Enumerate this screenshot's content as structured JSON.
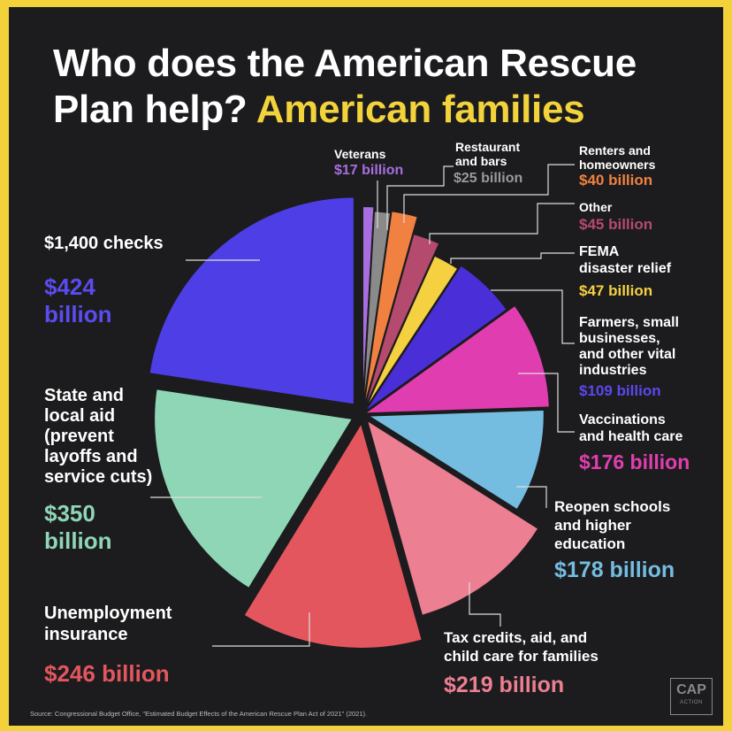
{
  "title": {
    "line1": "Who does the American Rescue",
    "line2": "Plan help?",
    "highlight": "American families"
  },
  "source": "Source: Congressional Budget Office, \"Estimated Budget Effects of the American Rescue Plan Act of 2021\" (2021).",
  "logo": {
    "main": "CAP",
    "sub": "ACTION"
  },
  "colors": {
    "background": "#1c1c1e",
    "border": "#f2d13a",
    "leader": "#dddddd"
  },
  "chart_data": {
    "type": "pie",
    "title": "Who does the American Rescue Plan help? American families",
    "unit": "billion USD",
    "slices": [
      {
        "key": "veterans",
        "name": "Veterans",
        "value": 17,
        "amount": "$17 billion",
        "color": "#a86ee0"
      },
      {
        "key": "restaurants",
        "name": "Restaurant and bars",
        "value": 25,
        "amount": "$25 billion",
        "color": "#8a8a8a"
      },
      {
        "key": "renters",
        "name": "Renters and homeowners",
        "value": 40,
        "amount": "$40 billion",
        "color": "#f08140"
      },
      {
        "key": "other",
        "name": "Other",
        "value": 45,
        "amount": "$45 billion",
        "color": "#b44a6e"
      },
      {
        "key": "fema",
        "name": "FEMA disaster relief",
        "value": 47,
        "amount": "$47 billion",
        "color": "#f5d040"
      },
      {
        "key": "farmers",
        "name": "Farmers, small businesses, and other vital industries",
        "value": 109,
        "amount": "$109 billion",
        "color": "#4a2ed8"
      },
      {
        "key": "vaccinations",
        "name": "Vaccinations and health care",
        "value": 176,
        "amount": "$176 billion",
        "color": "#e03eb0"
      },
      {
        "key": "schools",
        "name": "Reopen schools and higher education",
        "value": 178,
        "amount": "$178 billion",
        "color": "#74bce0"
      },
      {
        "key": "tax",
        "name": "Tax credits, aid, and child care for families",
        "value": 219,
        "amount": "$219 billion",
        "color": "#ec7f92"
      },
      {
        "key": "unemployment",
        "name": "Unemployment insurance",
        "value": 246,
        "amount": "$246 billion",
        "color": "#e4565e"
      },
      {
        "key": "state",
        "name": "State and local aid (prevent layoffs and service cuts)",
        "value": 350,
        "amount": "$350 billion",
        "color": "#8fd6b6"
      },
      {
        "key": "checks",
        "name": "$1,400 checks",
        "value": 424,
        "amount": "$424 billion",
        "color": "#4d3ee6"
      }
    ]
  },
  "labels": {
    "veterans": {
      "name": [
        "Veterans"
      ],
      "amount": "$17 billion"
    },
    "restaurants": {
      "name": [
        "Restaurant",
        "and bars"
      ],
      "amount": "$25 billion"
    },
    "renters": {
      "name": [
        "Renters and",
        "homeowners"
      ],
      "amount": "$40 billion"
    },
    "other": {
      "name": [
        "Other"
      ],
      "amount": "$45 billion"
    },
    "fema": {
      "name": [
        "FEMA",
        "disaster relief"
      ],
      "amount": "$47 billion"
    },
    "farmers": {
      "name": [
        "Farmers, small",
        "businesses,",
        "and other vital",
        "industries"
      ],
      "amount": "$109 billion"
    },
    "vaccinations": {
      "name": [
        "Vaccinations",
        "and health care"
      ],
      "amount": "$176 billion"
    },
    "schools": {
      "name": [
        "Reopen schools",
        "and higher",
        "education"
      ],
      "amount": "$178 billion"
    },
    "tax": {
      "name": [
        "Tax credits, aid, and",
        "child care for families"
      ],
      "amount": "$219 billion"
    },
    "unemployment": {
      "name": [
        "Unemployment",
        "insurance"
      ],
      "amount": "$246 billion"
    },
    "state": {
      "name": [
        "State and",
        "local aid",
        "(prevent",
        "layoffs and",
        "service cuts)"
      ],
      "amount": [
        "$350",
        "billion"
      ]
    },
    "checks": {
      "name": [
        "$1,400 checks"
      ],
      "amount": [
        "$424",
        "billion"
      ]
    }
  }
}
